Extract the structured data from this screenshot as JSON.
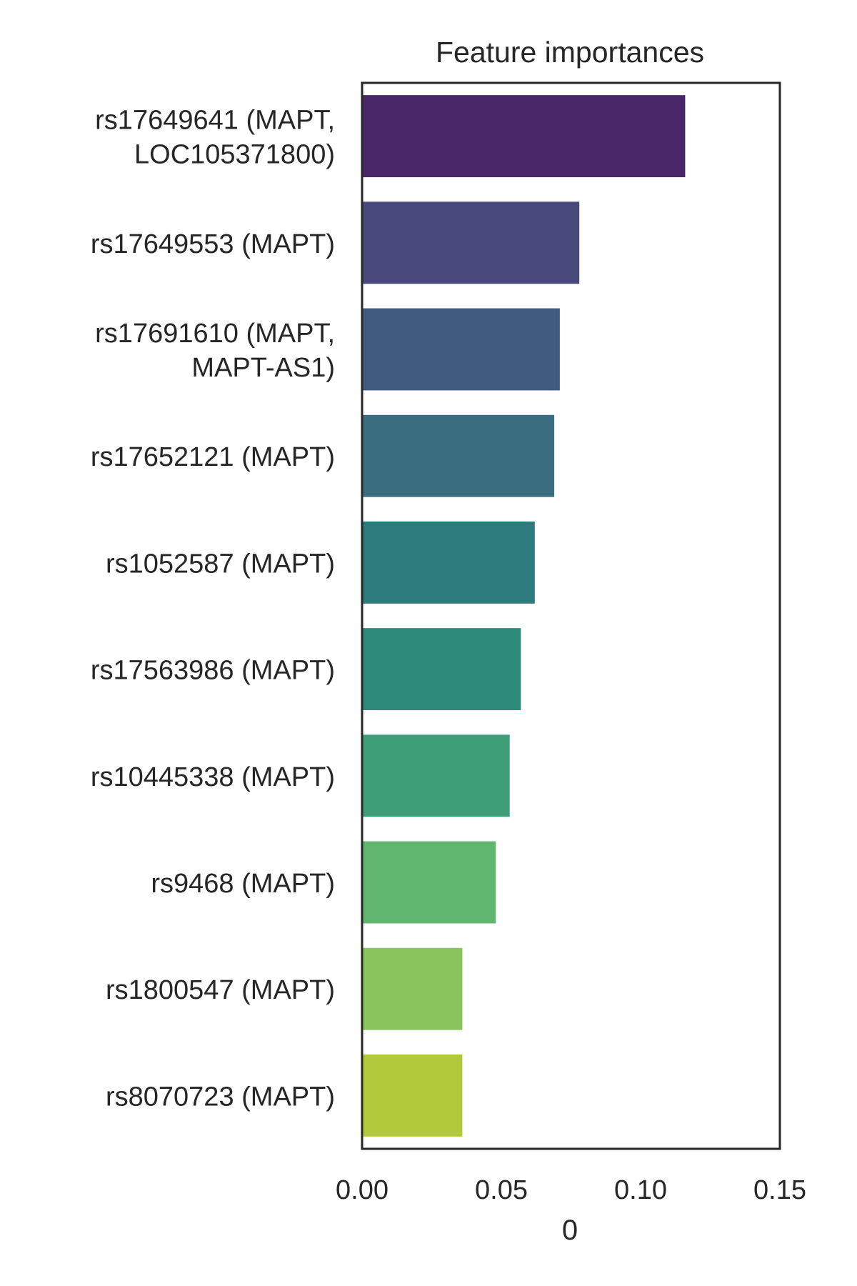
{
  "chart_data": {
    "type": "bar",
    "orientation": "horizontal",
    "title": "Feature importances",
    "xlabel": "0",
    "ylabel": "",
    "xlim": [
      0,
      0.15
    ],
    "xticks": [
      "0.00",
      "0.05",
      "0.10",
      "0.15"
    ],
    "grid": false,
    "legend": "none",
    "categories": [
      [
        "rs17649641 (MAPT,",
        "LOC105371800)"
      ],
      [
        "rs17649553 (MAPT)"
      ],
      [
        "rs17691610 (MAPT,",
        "MAPT-AS1)"
      ],
      [
        "rs17652121 (MAPT)"
      ],
      [
        "rs1052587 (MAPT)"
      ],
      [
        "rs17563986 (MAPT)"
      ],
      [
        "rs10445338 (MAPT)"
      ],
      [
        "rs9468 (MAPT)"
      ],
      [
        "rs1800547 (MAPT)"
      ],
      [
        "rs8070723 (MAPT)"
      ]
    ],
    "values": [
      0.116,
      0.078,
      0.071,
      0.069,
      0.062,
      0.057,
      0.053,
      0.048,
      0.036,
      0.036
    ],
    "colors": [
      "#482667",
      "#48487b",
      "#415b80",
      "#3a6d80",
      "#2e7b7d",
      "#2e8b7c",
      "#3d9e78",
      "#60b56f",
      "#8ac45c",
      "#b1c93a"
    ]
  }
}
